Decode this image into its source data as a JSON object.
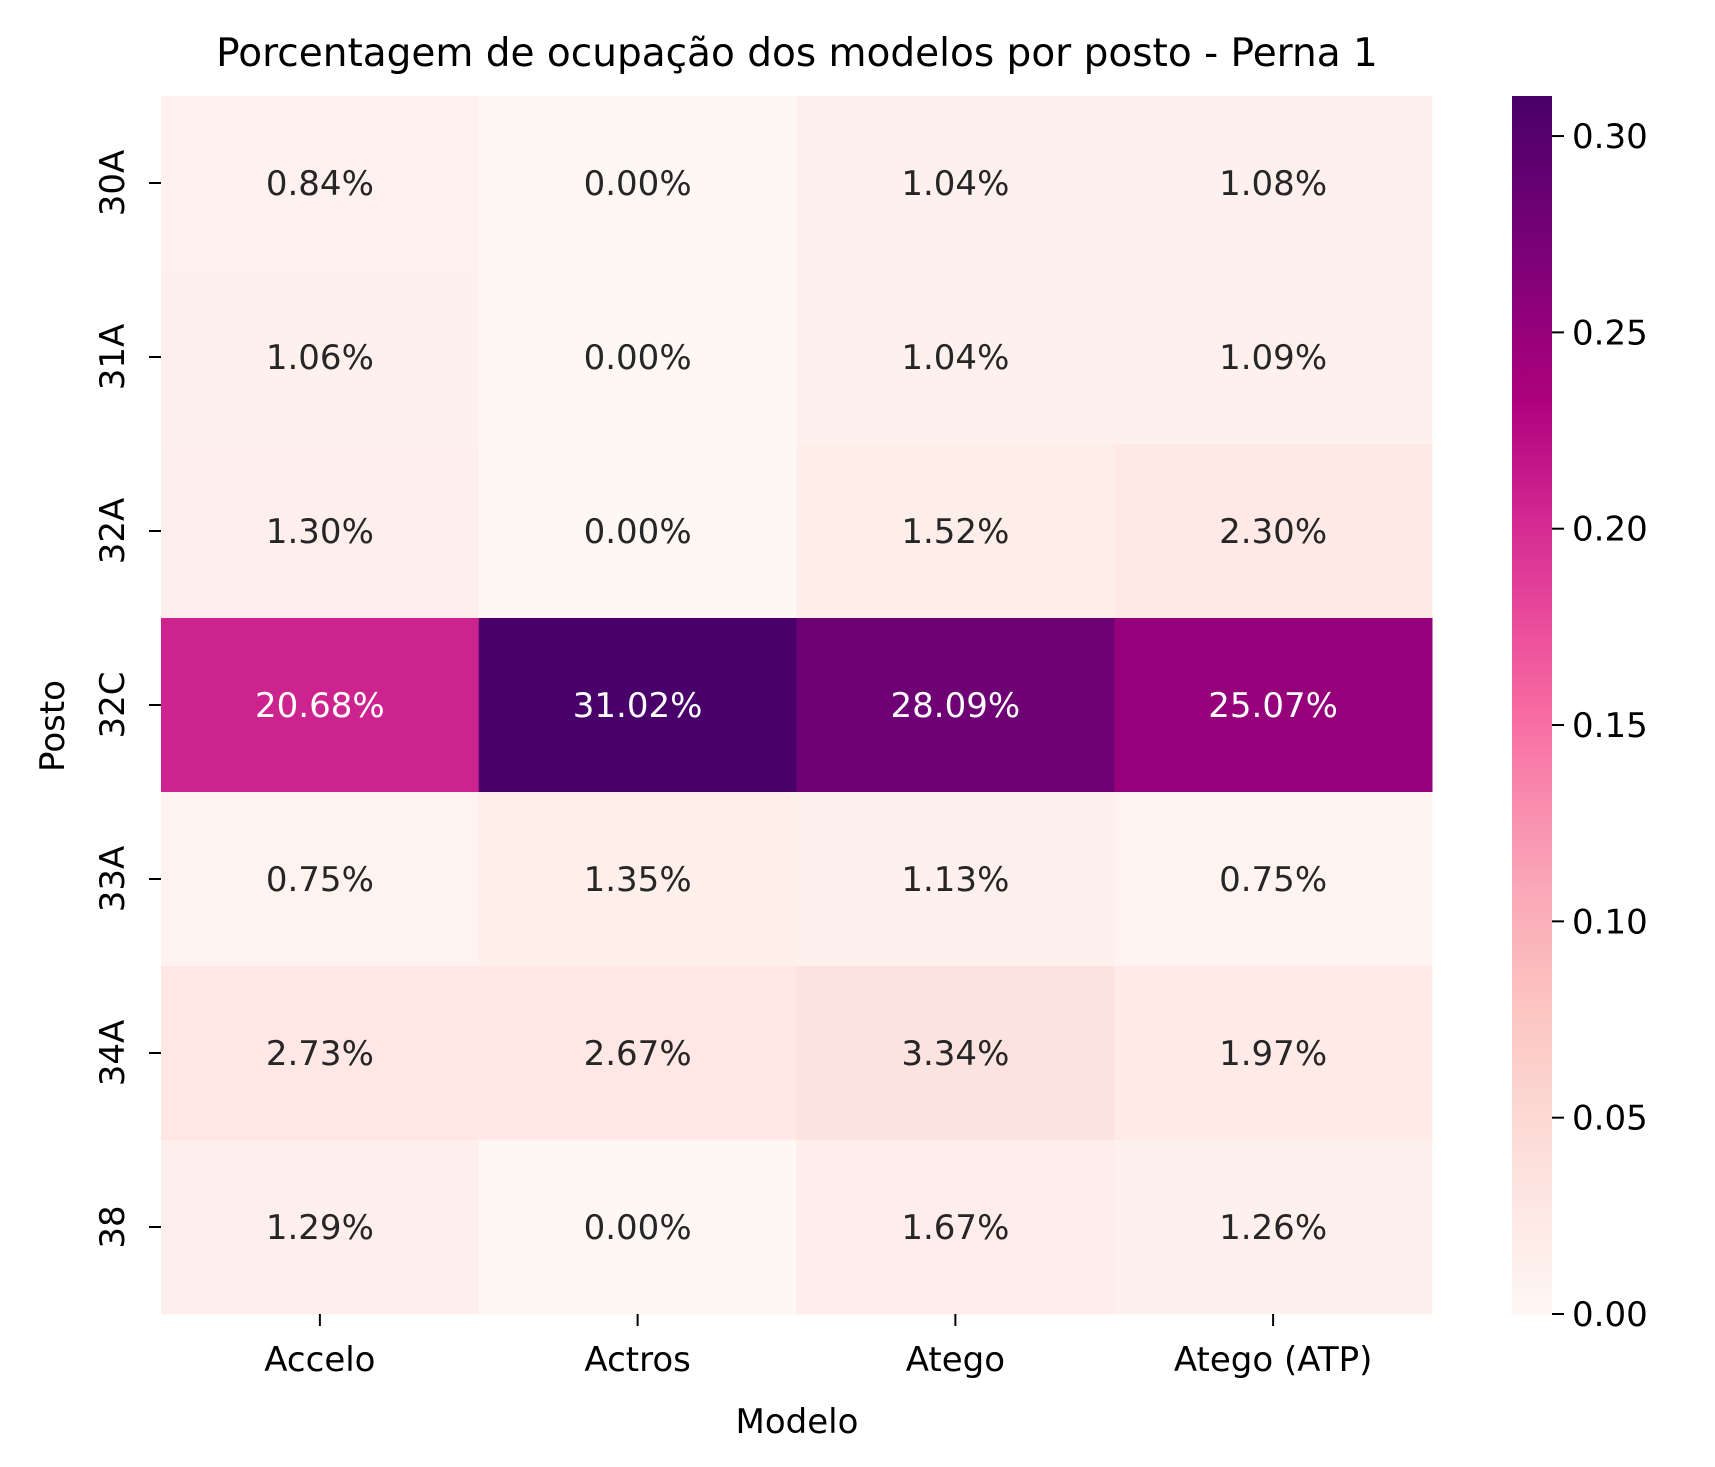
{
  "chart_data": {
    "type": "heatmap",
    "title": "Porcentagem de ocupação dos modelos por posto - Perna 1",
    "xlabel": "Modelo",
    "ylabel": "Posto",
    "x_categories": [
      "Accelo",
      "Actros",
      "Atego",
      "Atego (ATP)"
    ],
    "y_categories": [
      "30A",
      "31A",
      "32A",
      "32C",
      "33A",
      "34A",
      "38"
    ],
    "values": [
      [
        0.0084,
        0.0,
        0.0104,
        0.0108
      ],
      [
        0.0106,
        0.0,
        0.0104,
        0.0109
      ],
      [
        0.013,
        0.0,
        0.0152,
        0.023
      ],
      [
        0.2068,
        0.3102,
        0.2809,
        0.2507
      ],
      [
        0.0075,
        0.0135,
        0.0113,
        0.0075
      ],
      [
        0.0273,
        0.0267,
        0.0334,
        0.0197
      ],
      [
        0.0129,
        0.0,
        0.0167,
        0.0126
      ]
    ],
    "annotations": [
      [
        "0.84%",
        "0.00%",
        "1.04%",
        "1.08%"
      ],
      [
        "1.06%",
        "0.00%",
        "1.04%",
        "1.09%"
      ],
      [
        "1.30%",
        "0.00%",
        "1.52%",
        "2.30%"
      ],
      [
        "20.68%",
        "31.02%",
        "28.09%",
        "25.07%"
      ],
      [
        "0.75%",
        "1.35%",
        "1.13%",
        "0.75%"
      ],
      [
        "2.73%",
        "2.67%",
        "3.34%",
        "1.97%"
      ],
      [
        "1.29%",
        "0.00%",
        "1.67%",
        "1.26%"
      ]
    ],
    "colorbar": {
      "colormap": "RdPu",
      "vmin": 0.0,
      "vmax": 0.3102,
      "ticks": [
        0.0,
        0.05,
        0.1,
        0.15,
        0.2,
        0.25,
        0.3
      ],
      "tick_labels": [
        "0.00",
        "0.05",
        "0.10",
        "0.15",
        "0.20",
        "0.25",
        "0.30"
      ]
    }
  }
}
